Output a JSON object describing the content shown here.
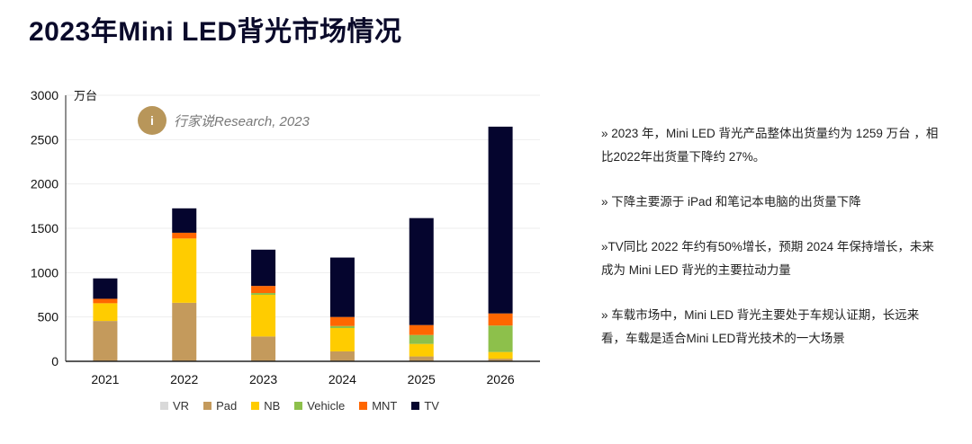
{
  "title": "2023年Mini LED背光市场情况",
  "logo": {
    "text": "行家说Research, 2023"
  },
  "chart_data": {
    "type": "bar",
    "stacked": true,
    "ylabel": "万台",
    "ylim": [
      0,
      3000
    ],
    "yticks": [
      "0",
      "500",
      "1000",
      "1500",
      "2000",
      "2500",
      "3000"
    ],
    "grid": true,
    "legend_position": "bottom",
    "categories": [
      "2021",
      "2022",
      "2023",
      "2024",
      "2025",
      "2026"
    ],
    "series": [
      {
        "name": "VR",
        "color": "#d9d9d9",
        "values": [
          0,
          0,
          0,
          0,
          0,
          0
        ]
      },
      {
        "name": "Pad",
        "color": "#c49a5c",
        "values": [
          455,
          660,
          280,
          112,
          55,
          30
        ]
      },
      {
        "name": "NB",
        "color": "#ffcc00",
        "values": [
          200,
          725,
          470,
          263,
          141,
          75
        ]
      },
      {
        "name": "Vehicle",
        "color": "#8dc04b",
        "values": [
          0,
          0,
          20,
          23,
          101,
          298
        ]
      },
      {
        "name": "MNT",
        "color": "#ff6600",
        "values": [
          50,
          65,
          80,
          102,
          112,
          137
        ]
      },
      {
        "name": "TV",
        "color": "#05052e",
        "values": [
          230,
          275,
          409,
          670,
          1206,
          2106
        ]
      }
    ]
  },
  "notes": [
    "» 2023 年，Mini LED 背光产品整体出货量约为 1259 万台 ，相比2022年出货量下降约 27%。",
    "» 下降主要源于 iPad 和笔记本电脑的出货量下降",
    "»TV同比 2022 年约有50%增长，预期 2024 年保持增长，未来成为 Mini LED 背光的主要拉动力量",
    "» 车载市场中，Mini LED 背光主要处于车规认证期，长远来看，车载是适合Mini LED背光技术的一大场景"
  ]
}
